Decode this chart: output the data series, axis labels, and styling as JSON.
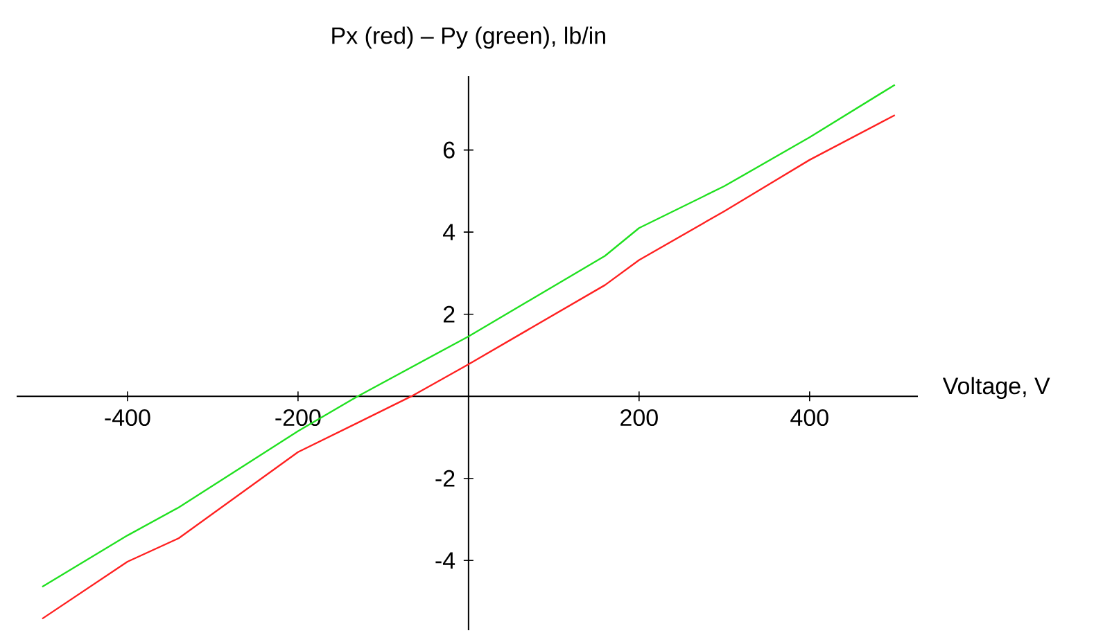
{
  "chart_data": {
    "type": "line",
    "title": "Px (red) – Py (green), lb/in",
    "xlabel": "Voltage, V",
    "xlim": [
      -530,
      527
    ],
    "ylim": [
      -5.7,
      7.8
    ],
    "xticks": [
      -400,
      -200,
      200,
      400
    ],
    "yticks": [
      -4,
      -2,
      2,
      4,
      6
    ],
    "series": [
      {
        "color": "#ff2020",
        "x": [
          -500,
          -400,
          -340,
          -200,
          -67,
          0,
          160,
          200,
          300,
          400,
          500
        ],
        "values": [
          -5.42,
          -4.03,
          -3.46,
          -1.36,
          0,
          0.78,
          2.71,
          3.32,
          4.51,
          5.76,
          6.85
        ]
      },
      {
        "color": "#20e020",
        "x": [
          -500,
          -400,
          -340,
          -200,
          -130,
          0,
          160,
          200,
          300,
          400,
          500
        ],
        "values": [
          -4.64,
          -3.39,
          -2.71,
          -0.85,
          0,
          1.46,
          3.42,
          4.1,
          5.12,
          6.31,
          7.59
        ]
      }
    ]
  }
}
